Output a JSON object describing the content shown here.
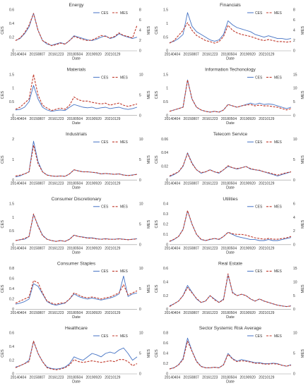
{
  "figure": {
    "x_ticks": [
      "20140404",
      "20150807",
      "20161223",
      "20180504",
      "20190920",
      "20210129"
    ],
    "x_label": "Date",
    "left_label": "CES",
    "right_label": "MES",
    "legend": [
      "CES",
      "MES"
    ],
    "colors": {
      "CES": "#4472C4",
      "MES": "#C0392B"
    }
  },
  "chart_data": [
    {
      "type": "line",
      "title": "Energy",
      "xlabel": "Date",
      "ylabel": "CES",
      "ylabel_right": "MES",
      "ylim": [
        0,
        0.6
      ],
      "yticks": [
        "0",
        "0.2",
        "0.4",
        "0.6"
      ],
      "ylim_right": [
        0,
        8
      ],
      "yticks_right": [
        "0",
        "2",
        "4",
        "6",
        "8"
      ],
      "series": [
        {
          "name": "CES",
          "axis": "left",
          "values": [
            0.15,
            0.18,
            0.25,
            0.35,
            0.55,
            0.3,
            0.15,
            0.1,
            0.08,
            0.1,
            0.12,
            0.1,
            0.15,
            0.22,
            0.2,
            0.18,
            0.16,
            0.15,
            0.17,
            0.2,
            0.22,
            0.18,
            0.2,
            0.25,
            0.22,
            0.2,
            0.18,
            0.2
          ]
        },
        {
          "name": "MES",
          "axis": "right",
          "values": [
            2,
            2.5,
            3.5,
            5,
            7.3,
            4,
            2,
            1.5,
            1,
            1.2,
            1.5,
            1.3,
            2,
            2.8,
            2.5,
            2.2,
            2,
            2.1,
            2.5,
            3,
            2.8,
            2.5,
            2.8,
            3.5,
            3,
            2.8,
            2.5,
            5
          ]
        }
      ]
    },
    {
      "type": "line",
      "title": "Financials",
      "xlabel": "Date",
      "ylabel": "CES",
      "ylabel_right": "MES",
      "ylim": [
        0,
        1.5
      ],
      "yticks": [
        "0",
        "0.5",
        "1",
        "1.5"
      ],
      "ylim_right": [
        0,
        8
      ],
      "yticks_right": [
        "0",
        "2",
        "4",
        "6",
        "8"
      ],
      "series": [
        {
          "name": "CES",
          "axis": "left",
          "values": [
            0.3,
            0.35,
            0.45,
            0.6,
            1.4,
            0.9,
            0.7,
            0.6,
            0.5,
            0.4,
            0.35,
            0.4,
            0.6,
            1.1,
            0.95,
            0.85,
            0.8,
            0.75,
            0.7,
            0.6,
            0.55,
            0.5,
            0.55,
            0.5,
            0.45,
            0.45,
            0.42,
            0.45
          ]
        },
        {
          "name": "MES",
          "axis": "right",
          "values": [
            1.5,
            2,
            3,
            4,
            5.5,
            4,
            3,
            2.5,
            2,
            1.8,
            1.5,
            1.8,
            2.8,
            5,
            4,
            3.5,
            3.2,
            3,
            2.8,
            2.5,
            2.2,
            2,
            2.2,
            2,
            1.8,
            1.8,
            1.7,
            1.8
          ]
        }
      ]
    },
    {
      "type": "line",
      "title": "Materials",
      "xlabel": "Date",
      "ylabel": "CES",
      "ylabel_right": "MES",
      "ylim": [
        0,
        1.5
      ],
      "yticks": [
        "0",
        "0.5",
        "1",
        "1.5"
      ],
      "ylim_right": [
        0,
        10
      ],
      "yticks_right": [
        "0",
        "5",
        "10"
      ],
      "series": [
        {
          "name": "CES",
          "axis": "left",
          "values": [
            0.2,
            0.22,
            0.3,
            0.5,
            1.1,
            0.6,
            0.3,
            0.2,
            0.15,
            0.18,
            0.2,
            0.18,
            0.3,
            0.4,
            0.35,
            0.3,
            0.28,
            0.3,
            0.25,
            0.28,
            0.3,
            0.25,
            0.28,
            0.3,
            0.25,
            0.22,
            0.25,
            0.3
          ]
        },
        {
          "name": "MES",
          "axis": "right",
          "values": [
            1.5,
            2,
            3,
            4,
            10,
            5,
            2.5,
            1.8,
            1.2,
            1.5,
            1.8,
            1.5,
            2.5,
            4.5,
            3.8,
            3.5,
            3.5,
            3.2,
            3,
            2.8,
            3,
            2.5,
            2.8,
            3,
            2.5,
            2.2,
            2.5,
            2.8
          ]
        }
      ]
    },
    {
      "type": "line",
      "title": "Information Techonology",
      "xlabel": "Date",
      "ylabel": "CES",
      "ylabel_right": "MES",
      "ylim": [
        0,
        1.5
      ],
      "yticks": [
        "0",
        "0.5",
        "1",
        "1.5"
      ],
      "ylim_right": [
        0,
        15
      ],
      "yticks_right": [
        "0",
        "5",
        "10",
        "15"
      ],
      "series": [
        {
          "name": "CES",
          "axis": "left",
          "values": [
            0.15,
            0.2,
            0.25,
            0.3,
            1.3,
            0.6,
            0.3,
            0.2,
            0.15,
            0.12,
            0.15,
            0.12,
            0.2,
            0.4,
            0.35,
            0.3,
            0.35,
            0.4,
            0.45,
            0.4,
            0.45,
            0.4,
            0.42,
            0.4,
            0.35,
            0.3,
            0.25,
            0.3
          ]
        },
        {
          "name": "MES",
          "axis": "right",
          "values": [
            1.5,
            2,
            2.5,
            3,
            13,
            6,
            3,
            2,
            1.5,
            1.2,
            1.5,
            1.2,
            2,
            4,
            3.5,
            3,
            3.5,
            3.8,
            4,
            3.5,
            3.8,
            3.5,
            3.5,
            3.2,
            3,
            2.5,
            2,
            2.5
          ]
        }
      ]
    },
    {
      "type": "line",
      "title": "Industrials",
      "xlabel": "Date",
      "ylabel": "CES",
      "ylabel_right": "MES",
      "ylim": [
        0,
        2
      ],
      "yticks": [
        "0",
        "1",
        "2"
      ],
      "ylim_right": [
        0,
        10
      ],
      "yticks_right": [
        "0",
        "5",
        "10"
      ],
      "series": [
        {
          "name": "CES",
          "axis": "left",
          "values": [
            0.15,
            0.2,
            0.3,
            0.4,
            1.9,
            0.9,
            0.4,
            0.25,
            0.2,
            0.18,
            0.2,
            0.18,
            0.3,
            0.5,
            0.45,
            0.4,
            0.4,
            0.38,
            0.35,
            0.3,
            0.32,
            0.3,
            0.28,
            0.3,
            0.25,
            0.22,
            0.25,
            0.28
          ]
        },
        {
          "name": "MES",
          "axis": "right",
          "values": [
            1,
            1.2,
            1.5,
            2,
            8.5,
            4,
            2,
            1.2,
            1,
            0.9,
            1,
            0.9,
            1.5,
            2.5,
            2.2,
            2,
            2,
            1.9,
            1.8,
            1.5,
            1.6,
            1.5,
            1.4,
            1.5,
            1.2,
            1.1,
            1.2,
            1.4
          ]
        }
      ]
    },
    {
      "type": "line",
      "title": "Telecom Service",
      "xlabel": "Date",
      "ylabel": "CES",
      "ylabel_right": "MES",
      "ylim": [
        0,
        0.06
      ],
      "yticks": [
        "0",
        "0.02",
        "0.04",
        "0.06"
      ],
      "ylim_right": [
        0,
        10
      ],
      "yticks_right": [
        "0",
        "5",
        "10"
      ],
      "series": [
        {
          "name": "CES",
          "axis": "left",
          "values": [
            0.005,
            0.008,
            0.012,
            0.02,
            0.04,
            0.025,
            0.015,
            0.01,
            0.012,
            0.015,
            0.012,
            0.01,
            0.015,
            0.02,
            0.018,
            0.016,
            0.018,
            0.02,
            0.016,
            0.015,
            0.014,
            0.012,
            0.01,
            0.008,
            0.006,
            0.008,
            0.01,
            0.012
          ]
        },
        {
          "name": "MES",
          "axis": "right",
          "values": [
            1,
            1.5,
            2,
            3.5,
            6.5,
            4,
            2.5,
            1.8,
            2,
            2.5,
            2,
            1.8,
            2.5,
            3.5,
            3,
            2.8,
            3,
            3.3,
            2.8,
            2.5,
            2.4,
            2,
            1.8,
            1.5,
            1.2,
            1.5,
            1.8,
            2
          ]
        }
      ]
    },
    {
      "type": "line",
      "title": "Consumer Discretionary",
      "xlabel": "Date",
      "ylabel": "CES",
      "ylabel_right": "MES",
      "ylim": [
        0,
        1.5
      ],
      "yticks": [
        "0",
        "0.5",
        "1",
        "1.5"
      ],
      "ylim_right": [
        0,
        10
      ],
      "yticks_right": [
        "0",
        "5",
        "10"
      ],
      "series": [
        {
          "name": "CES",
          "axis": "left",
          "values": [
            0.15,
            0.18,
            0.2,
            0.3,
            1.1,
            0.7,
            0.35,
            0.2,
            0.15,
            0.12,
            0.15,
            0.12,
            0.2,
            0.35,
            0.3,
            0.28,
            0.25,
            0.25,
            0.22,
            0.2,
            0.22,
            0.2,
            0.2,
            0.22,
            0.2,
            0.18,
            0.2,
            0.22
          ]
        },
        {
          "name": "MES",
          "axis": "right",
          "values": [
            1,
            1.2,
            1.5,
            2,
            7.5,
            4.5,
            2.2,
            1.3,
            1,
            0.8,
            1,
            0.8,
            1.3,
            2.3,
            2,
            1.8,
            1.6,
            1.6,
            1.4,
            1.3,
            1.4,
            1.3,
            1.3,
            1.4,
            1.3,
            1.2,
            1.3,
            1.4
          ]
        }
      ]
    },
    {
      "type": "line",
      "title": "Utilities",
      "xlabel": "Date",
      "ylabel": "CES",
      "ylabel_right": "MES",
      "ylim": [
        0,
        0.4
      ],
      "yticks": [
        "0",
        "0.1",
        "0.2",
        "0.3",
        "0.4"
      ],
      "ylim_right": [
        0,
        6
      ],
      "yticks_right": [
        "0",
        "2",
        "4",
        "6"
      ],
      "series": [
        {
          "name": "CES",
          "axis": "left",
          "values": [
            0.03,
            0.05,
            0.08,
            0.15,
            0.33,
            0.2,
            0.1,
            0.05,
            0.04,
            0.05,
            0.06,
            0.05,
            0.08,
            0.12,
            0.1,
            0.08,
            0.07,
            0.06,
            0.05,
            0.05,
            0.04,
            0.04,
            0.05,
            0.04,
            0.04,
            0.05,
            0.06,
            0.07
          ]
        },
        {
          "name": "MES",
          "axis": "right",
          "values": [
            0.5,
            0.8,
            1.2,
            2.2,
            5,
            3,
            1.5,
            0.8,
            0.6,
            0.8,
            0.9,
            0.8,
            1.2,
            1.8,
            1.6,
            1.5,
            1.5,
            1.4,
            1.2,
            1,
            0.9,
            0.8,
            0.9,
            0.8,
            0.8,
            0.9,
            1,
            1.2
          ]
        }
      ]
    },
    {
      "type": "line",
      "title": "Consumer Staples",
      "xlabel": "Date",
      "ylabel": "CES",
      "ylabel_right": "MES",
      "ylim": [
        0,
        0.8
      ],
      "yticks": [
        "0",
        "0.2",
        "0.4",
        "0.6",
        "0.8"
      ],
      "ylim_right": [
        0,
        10
      ],
      "yticks_right": [
        "0",
        "5",
        "10"
      ],
      "series": [
        {
          "name": "CES",
          "axis": "left",
          "values": [
            0.1,
            0.12,
            0.15,
            0.2,
            0.5,
            0.45,
            0.3,
            0.15,
            0.1,
            0.08,
            0.1,
            0.12,
            0.2,
            0.3,
            0.25,
            0.22,
            0.2,
            0.22,
            0.2,
            0.18,
            0.2,
            0.22,
            0.25,
            0.3,
            0.65,
            0.25,
            0.3,
            0.32
          ]
        },
        {
          "name": "MES",
          "axis": "right",
          "values": [
            1.5,
            2,
            2.5,
            3,
            7,
            6.5,
            4,
            2,
            1.5,
            1.2,
            1.5,
            1.6,
            2.5,
            4,
            3.5,
            3,
            2.8,
            3,
            2.8,
            2.5,
            2.8,
            3,
            3.5,
            4,
            6,
            3.5,
            4,
            4.5
          ]
        }
      ]
    },
    {
      "type": "line",
      "title": "Real Estate",
      "xlabel": "Date",
      "ylabel": "CES",
      "ylabel_right": "MES",
      "ylim": [
        0,
        0.6
      ],
      "yticks": [
        "0",
        "0.2",
        "0.4",
        "0.6"
      ],
      "ylim_right": [
        0,
        15
      ],
      "yticks_right": [
        "0",
        "5",
        "10",
        "15"
      ],
      "series": [
        {
          "name": "CES",
          "axis": "left",
          "values": [
            0.05,
            0.08,
            0.12,
            0.2,
            0.35,
            0.25,
            0.15,
            0.1,
            0.12,
            0.2,
            0.15,
            0.1,
            0.15,
            0.5,
            0.25,
            0.2,
            0.22,
            0.2,
            0.15,
            0.12,
            0.15,
            0.12,
            0.1,
            0.08,
            0.06,
            0.05,
            0.04,
            0.05
          ]
        },
        {
          "name": "MES",
          "axis": "right",
          "values": [
            1,
            2,
            3,
            5,
            8,
            6,
            4,
            2.5,
            3,
            5,
            3.5,
            2.5,
            3.5,
            13,
            6,
            5,
            5.5,
            5,
            3.8,
            3,
            3.8,
            3,
            2.5,
            2,
            1.5,
            1.2,
            1,
            1.2
          ]
        }
      ]
    },
    {
      "type": "line",
      "title": "Healthcare",
      "xlabel": "Date",
      "ylabel": "CES",
      "ylabel_right": "MES",
      "ylim": [
        0,
        0.6
      ],
      "yticks": [
        "0",
        "0.2",
        "0.4",
        "0.6"
      ],
      "ylim_right": [
        0,
        10
      ],
      "yticks_right": [
        "0",
        "5",
        "10"
      ],
      "series": [
        {
          "name": "CES",
          "axis": "left",
          "values": [
            0.1,
            0.12,
            0.15,
            0.2,
            0.48,
            0.3,
            0.18,
            0.1,
            0.08,
            0.07,
            0.08,
            0.1,
            0.15,
            0.25,
            0.22,
            0.2,
            0.25,
            0.3,
            0.28,
            0.25,
            0.3,
            0.32,
            0.3,
            0.35,
            0.38,
            0.3,
            0.2,
            0.25
          ]
        },
        {
          "name": "MES",
          "axis": "right",
          "values": [
            1.5,
            2,
            2.5,
            3,
            8,
            5,
            3,
            1.5,
            1.2,
            1,
            1.2,
            1.5,
            2.2,
            3.5,
            3,
            2.8,
            3,
            3.2,
            3,
            2.8,
            3,
            3.2,
            3,
            3.5,
            3.5,
            3,
            2,
            2.5
          ]
        }
      ]
    },
    {
      "type": "line",
      "title": "Sector Systemic Risk Average",
      "xlabel": "Date",
      "ylabel": "CES",
      "ylabel_right": "MES",
      "ylim": [
        0,
        0.8
      ],
      "yticks": [
        "0",
        "0.2",
        "0.4",
        "0.6",
        "0.8"
      ],
      "ylim_right": [
        0,
        10
      ],
      "yticks_right": [
        "0",
        "5",
        "10"
      ],
      "series": [
        {
          "name": "CES",
          "axis": "left",
          "values": [
            0.1,
            0.12,
            0.18,
            0.3,
            0.7,
            0.45,
            0.25,
            0.15,
            0.12,
            0.12,
            0.13,
            0.12,
            0.18,
            0.4,
            0.3,
            0.25,
            0.28,
            0.26,
            0.24,
            0.22,
            0.22,
            0.2,
            0.2,
            0.21,
            0.2,
            0.17,
            0.15,
            0.18
          ]
        },
        {
          "name": "MES",
          "axis": "right",
          "values": [
            1.2,
            1.5,
            2.2,
            3.5,
            8,
            5.5,
            3,
            1.8,
            1.5,
            1.5,
            1.6,
            1.5,
            2.2,
            4.8,
            3.6,
            3,
            3.2,
            3.1,
            2.9,
            2.6,
            2.6,
            2.4,
            2.4,
            2.5,
            2.4,
            2.1,
            1.9,
            2.1
          ]
        }
      ]
    }
  ]
}
